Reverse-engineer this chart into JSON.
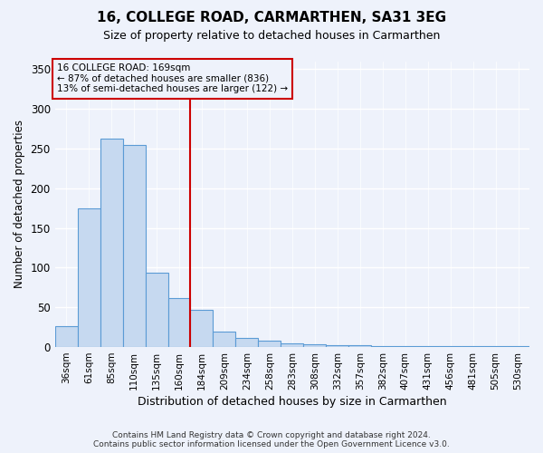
{
  "title1": "16, COLLEGE ROAD, CARMARTHEN, SA31 3EG",
  "title2": "Size of property relative to detached houses in Carmarthen",
  "xlabel": "Distribution of detached houses by size in Carmarthen",
  "ylabel": "Number of detached properties",
  "categories": [
    "36sqm",
    "61sqm",
    "85sqm",
    "110sqm",
    "135sqm",
    "160sqm",
    "184sqm",
    "209sqm",
    "234sqm",
    "258sqm",
    "283sqm",
    "308sqm",
    "332sqm",
    "357sqm",
    "382sqm",
    "407sqm",
    "431sqm",
    "456sqm",
    "481sqm",
    "505sqm",
    "530sqm"
  ],
  "values": [
    26,
    175,
    263,
    255,
    94,
    62,
    47,
    19,
    11,
    8,
    5,
    3,
    2,
    2,
    1,
    1,
    1,
    1,
    1,
    1,
    1
  ],
  "bar_color": "#c6d9f0",
  "bar_edge_color": "#5b9bd5",
  "ref_line_color": "#cc0000",
  "annotation_text": "16 COLLEGE ROAD: 169sqm\n← 87% of detached houses are smaller (836)\n13% of semi-detached houses are larger (122) →",
  "annotation_box_color": "#cc0000",
  "ylim": [
    0,
    360
  ],
  "yticks": [
    0,
    50,
    100,
    150,
    200,
    250,
    300,
    350
  ],
  "footer": "Contains HM Land Registry data © Crown copyright and database right 2024.\nContains public sector information licensed under the Open Government Licence v3.0.",
  "bg_color": "#eef2fb",
  "grid_color": "#ffffff"
}
